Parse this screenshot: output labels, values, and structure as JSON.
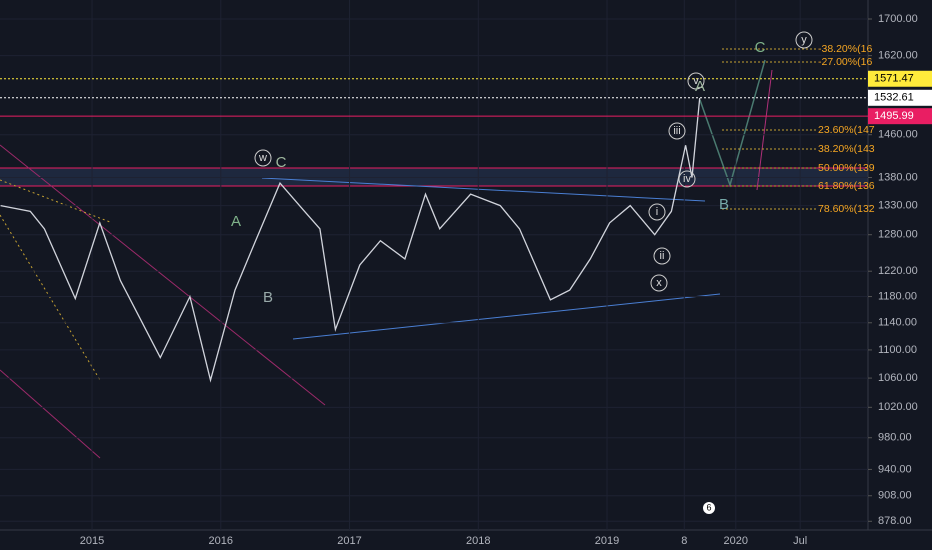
{
  "chart_data": {
    "type": "line",
    "log_scale": true,
    "grid": true,
    "background": "#131722",
    "color": "#d1d4dc",
    "x": [
      2014.29,
      2014.52,
      2014.63,
      2014.87,
      2015.06,
      2015.22,
      2015.53,
      2015.76,
      2015.92,
      2016.11,
      2016.27,
      2016.46,
      2016.65,
      2016.77,
      2016.89,
      2017.08,
      2017.24,
      2017.43,
      2017.59,
      2017.7,
      2017.94,
      2018.17,
      2018.32,
      2018.56,
      2018.71,
      2018.87,
      2019.02,
      2019.18,
      2019.37,
      2019.5,
      2019.61,
      2019.66,
      2019.72
    ],
    "values": [
      1330,
      1320,
      1290,
      1177,
      1300,
      1205,
      1089,
      1180,
      1057,
      1190,
      1270,
      1370,
      1320,
      1290,
      1130,
      1230,
      1270,
      1240,
      1350,
      1290,
      1350,
      1330,
      1290,
      1175,
      1190,
      1240,
      1300,
      1330,
      1280,
      1320,
      1440,
      1380,
      1532
    ],
    "xlim": [
      2014.285,
      2021.027
    ],
    "xticks": [
      2015,
      2016,
      2017,
      2018,
      2019,
      {
        "value": 2019.6,
        "label": "8"
      },
      2020,
      {
        "value": 2020.5,
        "label": "Jul"
      }
    ],
    "ylim": [
      868,
      1743
    ],
    "yticks": [
      {
        "value": 1700,
        "label": "1700.00"
      },
      {
        "value": 1620,
        "label": "1620.00"
      },
      {
        "value": 1460,
        "label": "1460.00"
      },
      {
        "value": 1380,
        "label": "1380.00"
      },
      {
        "value": 1330,
        "label": "1330.00"
      },
      {
        "value": 1280,
        "label": "1280.00"
      },
      {
        "value": 1220,
        "label": "1220.00"
      },
      {
        "value": 1180,
        "label": "1180.00"
      },
      {
        "value": 1140,
        "label": "1140.00"
      },
      {
        "value": 1100,
        "label": "1100.00"
      },
      {
        "value": 1060,
        "label": "1060.00"
      },
      {
        "value": 1020,
        "label": "1020.00"
      },
      {
        "value": 980,
        "label": "980.00"
      },
      {
        "value": 940,
        "label": "940.00"
      },
      {
        "value": 908,
        "label": "908.00"
      },
      {
        "value": 878,
        "label": "878.00"
      }
    ],
    "levels": [
      {
        "value": 1571.47,
        "color": "#ffeb3b"
      },
      {
        "value": 1532.61,
        "color": "#ffffff"
      },
      {
        "value": 1495.99,
        "color": "#e91e63"
      }
    ],
    "fib_labels": [
      "-38.20%(16",
      "-27.00%(16",
      "23.60%(147",
      "38.20%(143",
      "50.00%(139",
      "61.80%(136",
      "78.60%(132"
    ],
    "annotations": [
      "w",
      "C",
      "A",
      "B",
      "y",
      "C",
      "v",
      "A",
      "iii",
      "iv",
      "i",
      "ii",
      "x",
      "B"
    ],
    "badge": "6"
  }
}
